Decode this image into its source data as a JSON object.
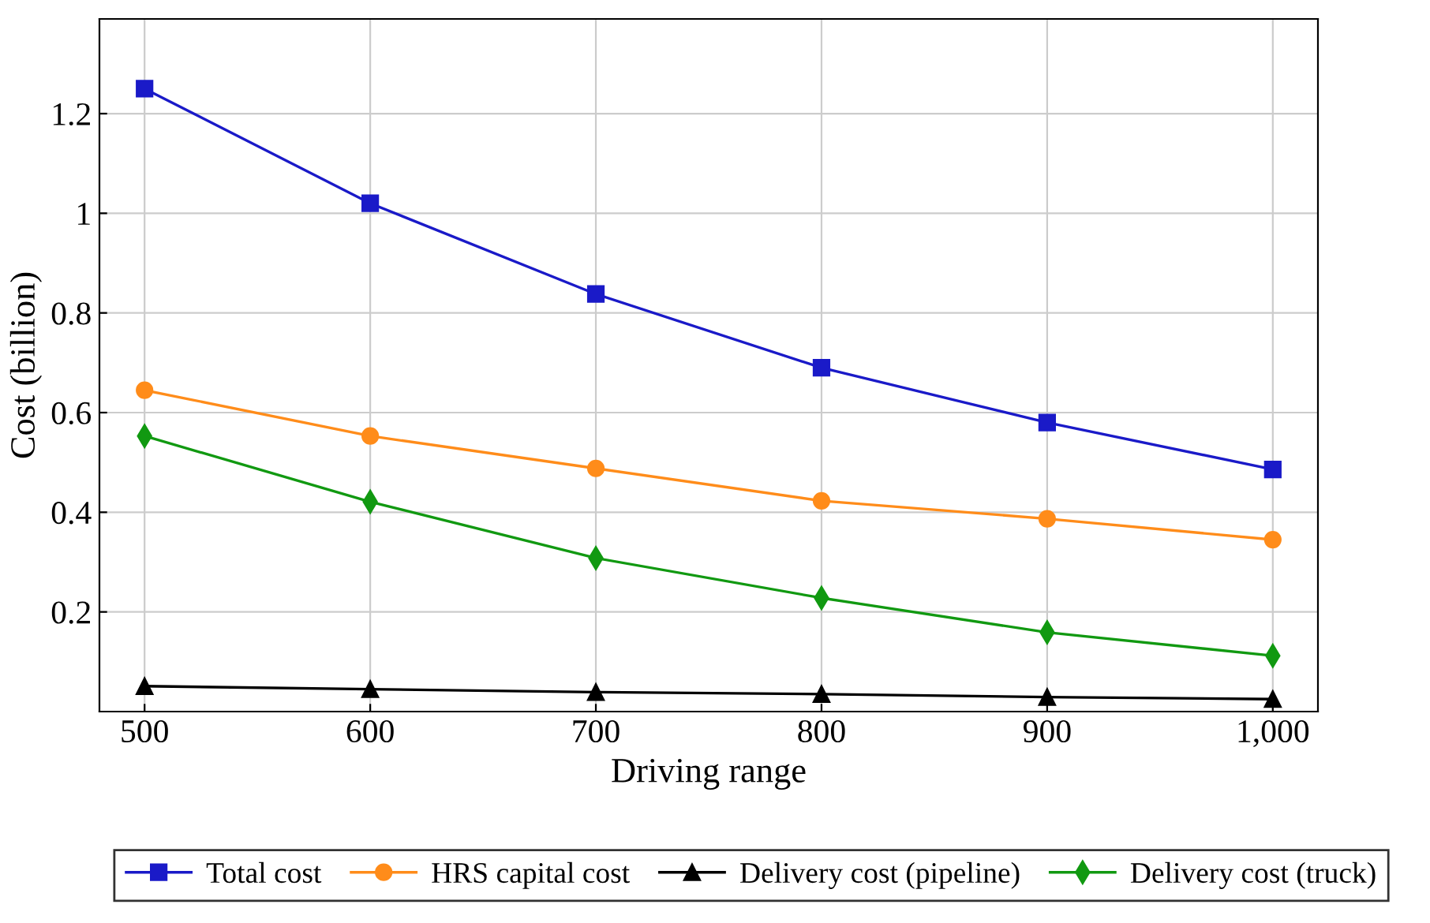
{
  "chart_data": {
    "type": "line",
    "xlabel": "Driving range",
    "ylabel": "Cost (billion)",
    "x": [
      500,
      600,
      700,
      800,
      900,
      1000
    ],
    "series": [
      {
        "name": "Total cost",
        "color": "#1a1ac8",
        "marker": "square",
        "values": [
          1.25,
          1.02,
          0.838,
          0.69,
          0.58,
          0.486
        ]
      },
      {
        "name": "HRS capital cost",
        "color": "#ff8c1a",
        "marker": "circle",
        "values": [
          0.645,
          0.553,
          0.488,
          0.423,
          0.387,
          0.345
        ]
      },
      {
        "name": "Delivery cost (pipeline)",
        "color": "#000000",
        "marker": "triangle",
        "values": [
          0.051,
          0.045,
          0.039,
          0.035,
          0.029,
          0.025
        ]
      },
      {
        "name": "Delivery cost (truck)",
        "color": "#119911",
        "marker": "diamond",
        "values": [
          0.553,
          0.421,
          0.308,
          0.228,
          0.159,
          0.112
        ]
      }
    ],
    "xlim": [
      480,
      1020
    ],
    "ylim": [
      0,
      1.39
    ],
    "xticks": [
      500,
      600,
      700,
      800,
      900,
      {
        "value": 1000,
        "label": "1,000"
      }
    ],
    "yticks": [
      0.2,
      0.4,
      0.6,
      0.8,
      {
        "value": 1,
        "label": "1"
      },
      1.2
    ],
    "grid": true,
    "legend": "bottom",
    "line_style": "solid"
  }
}
